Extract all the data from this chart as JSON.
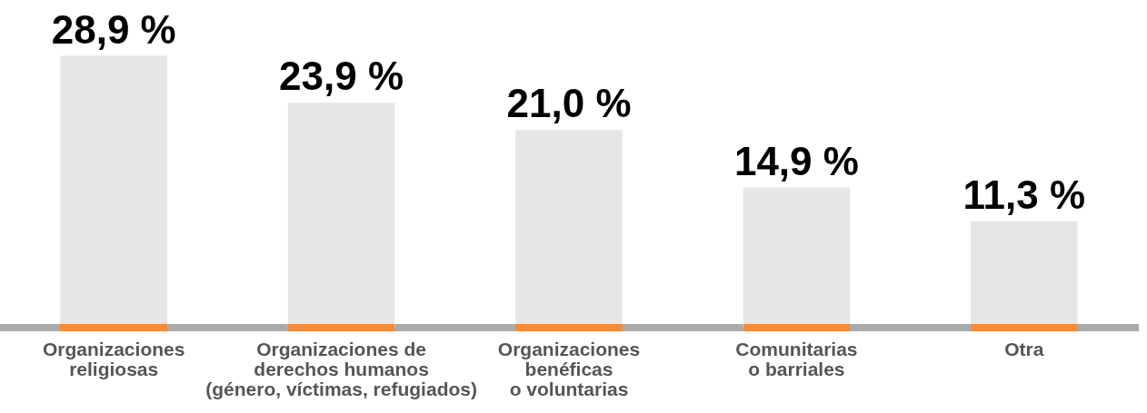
{
  "chart_data": {
    "type": "bar",
    "categories": [
      "Organizaciones\nreligiosas",
      "Organizaciones de\nderechos humanos\n(género, víctimas, refugiados)",
      "Organizaciones\nbenéficas\no voluntarias",
      "Comunitarias\no barriales",
      "Otra"
    ],
    "values": [
      28.9,
      23.9,
      21.0,
      14.9,
      11.3
    ],
    "value_labels": [
      "28,9 %",
      "23,9 %",
      "21,0 %",
      "14,9 %",
      "11,3 %"
    ],
    "color": "#e6e6e6",
    "grid": false,
    "legend": false
  }
}
